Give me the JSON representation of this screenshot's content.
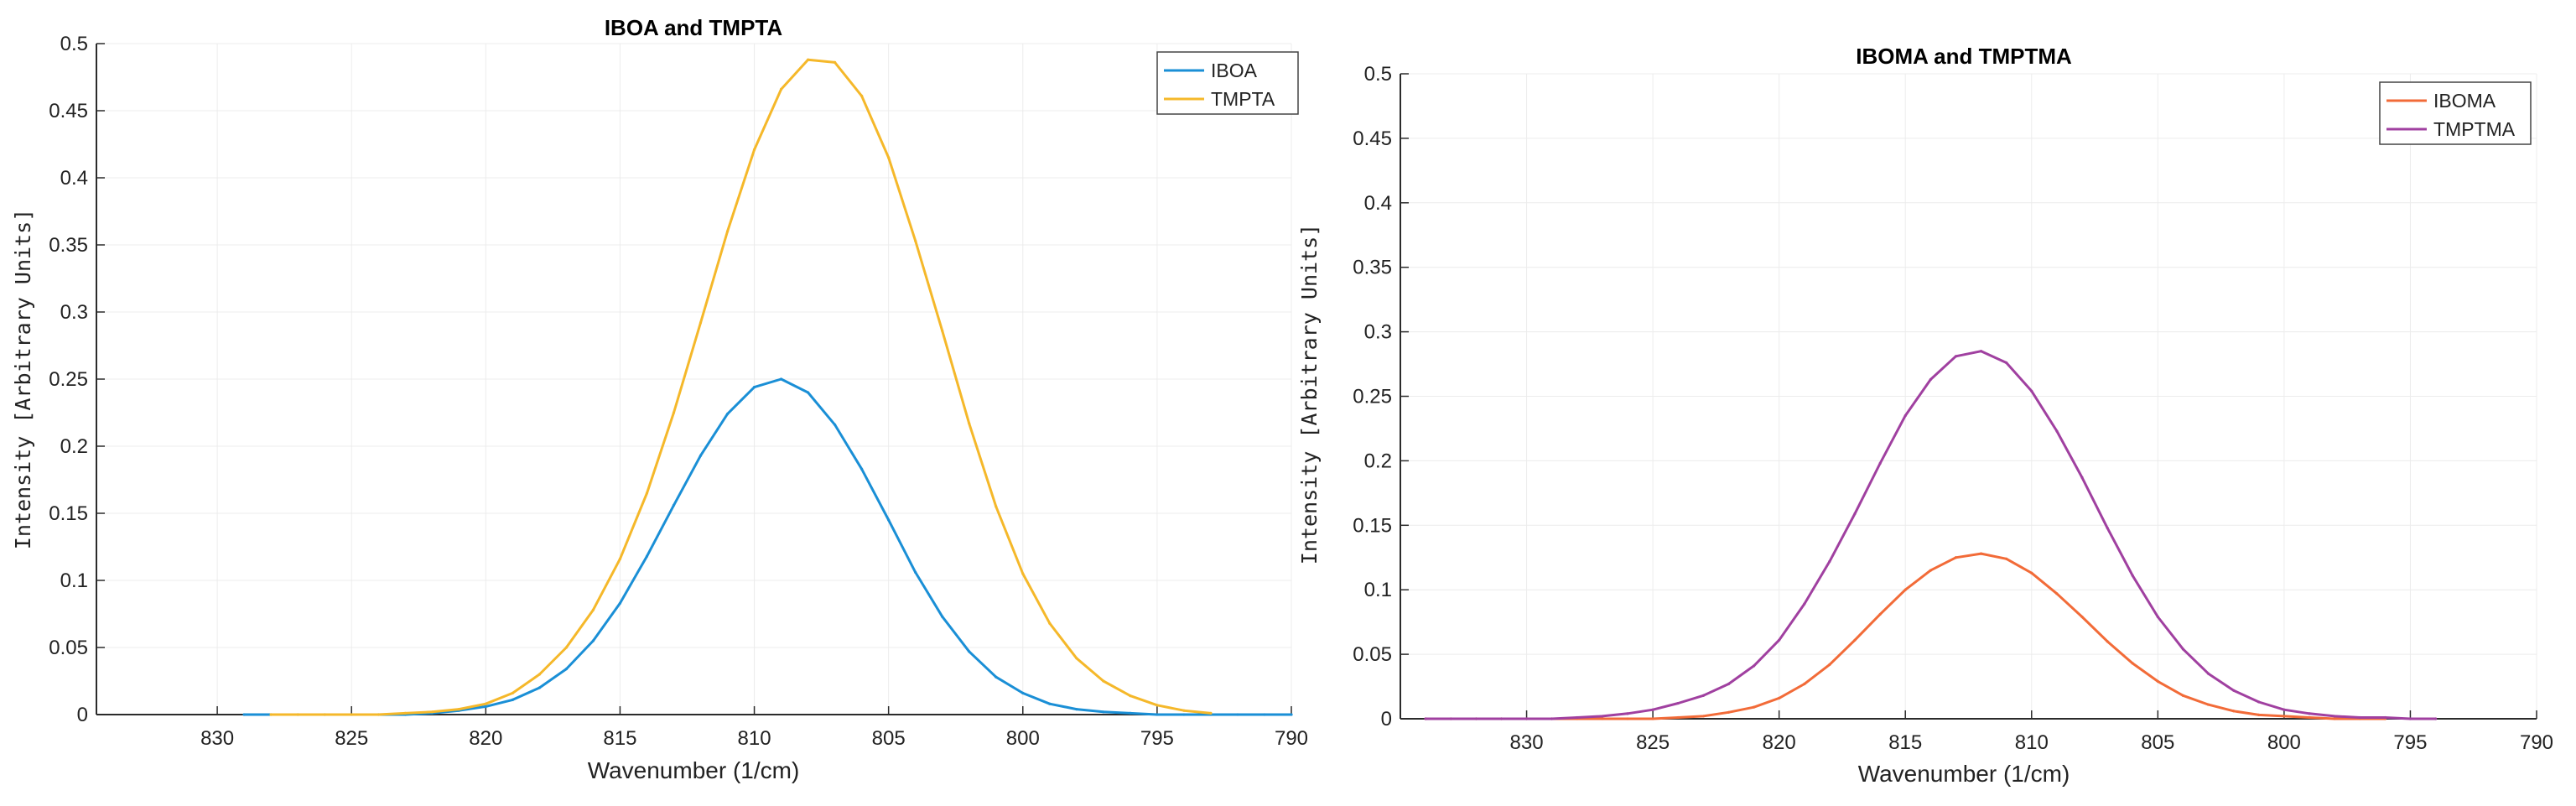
{
  "chart_data": [
    {
      "type": "line",
      "title": "IBOA and TMPTA",
      "xlabel": "Wavenumber (1/cm)",
      "ylabel": "Intensity [Arbitrary Units]",
      "xlim": [
        834.5,
        790
      ],
      "ylim": [
        0,
        0.5
      ],
      "xticks": [
        "830",
        "825",
        "820",
        "815",
        "810",
        "805",
        "800",
        "795",
        "790"
      ],
      "yticks": [
        "0",
        "0.05",
        "0.1",
        "0.15",
        "0.2",
        "0.25",
        "0.3",
        "0.35",
        "0.4",
        "0.45",
        "0.5"
      ],
      "legend": "top-right",
      "series": [
        {
          "name": "IBOA",
          "color": "#1a8fd6",
          "x": [
            829,
            828,
            827,
            826,
            825,
            824,
            823,
            822,
            821,
            820,
            819,
            818,
            817,
            816,
            815,
            814,
            813,
            812,
            811,
            810,
            809,
            808,
            807,
            806,
            805,
            804,
            803,
            802,
            801,
            800,
            799,
            798,
            797,
            796,
            795,
            794,
            793,
            792,
            791,
            790
          ],
          "y": [
            0,
            0,
            0,
            0,
            0,
            0,
            0,
            0.001,
            0.003,
            0.006,
            0.011,
            0.02,
            0.034,
            0.055,
            0.083,
            0.118,
            0.156,
            0.193,
            0.224,
            0.244,
            0.25,
            0.24,
            0.216,
            0.183,
            0.145,
            0.106,
            0.073,
            0.047,
            0.028,
            0.016,
            0.008,
            0.004,
            0.002,
            0.001,
            0,
            0,
            0,
            0,
            0,
            0
          ]
        },
        {
          "name": "TMPTA",
          "color": "#f5b82a",
          "x": [
            828,
            827,
            826,
            825,
            824,
            823,
            822,
            821,
            820,
            819,
            818,
            817,
            816,
            815,
            814,
            813,
            812,
            811,
            810,
            809,
            808,
            807,
            806,
            805,
            804,
            803,
            802,
            801,
            800,
            799,
            798,
            797,
            796,
            795,
            794,
            793
          ],
          "y": [
            0,
            0,
            0,
            0,
            0,
            0.001,
            0.002,
            0.004,
            0.008,
            0.016,
            0.03,
            0.05,
            0.078,
            0.116,
            0.165,
            0.225,
            0.292,
            0.36,
            0.421,
            0.466,
            0.488,
            0.486,
            0.461,
            0.415,
            0.353,
            0.286,
            0.217,
            0.155,
            0.105,
            0.068,
            0.042,
            0.025,
            0.014,
            0.007,
            0.003,
            0.001
          ]
        }
      ]
    },
    {
      "type": "line",
      "title": "IBOMA and TMPTMA",
      "xlabel": "Wavenumber (1/cm)",
      "ylabel": "Intensity [Arbitrary Units]",
      "xlim": [
        835,
        790
      ],
      "ylim": [
        0,
        0.5
      ],
      "xticks": [
        "830",
        "825",
        "820",
        "815",
        "810",
        "805",
        "800",
        "795",
        "790"
      ],
      "yticks": [
        "0",
        "0.05",
        "0.1",
        "0.15",
        "0.2",
        "0.25",
        "0.3",
        "0.35",
        "0.4",
        "0.45",
        "0.5"
      ],
      "legend": "top-right",
      "series": [
        {
          "name": "IBOMA",
          "color": "#f26b38",
          "x": [
            834,
            833,
            832,
            831,
            830,
            829,
            828,
            827,
            826,
            825,
            824,
            823,
            822,
            821,
            820,
            819,
            818,
            817,
            816,
            815,
            814,
            813,
            812,
            811,
            810,
            809,
            808,
            807,
            806,
            805,
            804,
            803,
            802,
            801,
            800,
            799,
            798,
            797,
            796
          ],
          "y": [
            0,
            0,
            0,
            0,
            0,
            0,
            0,
            0,
            0,
            0,
            0.001,
            0.002,
            0.005,
            0.009,
            0.016,
            0.027,
            0.042,
            0.061,
            0.081,
            0.1,
            0.115,
            0.125,
            0.128,
            0.124,
            0.113,
            0.097,
            0.079,
            0.06,
            0.043,
            0.029,
            0.018,
            0.011,
            0.006,
            0.003,
            0.002,
            0.001,
            0,
            0,
            0
          ]
        },
        {
          "name": "TMPTMA",
          "color": "#a040a0",
          "x": [
            834,
            833,
            832,
            831,
            830,
            829,
            828,
            827,
            826,
            825,
            824,
            823,
            822,
            821,
            820,
            819,
            818,
            817,
            816,
            815,
            814,
            813,
            812,
            811,
            810,
            809,
            808,
            807,
            806,
            805,
            804,
            803,
            802,
            801,
            800,
            799,
            798,
            797,
            796,
            795,
            794
          ],
          "y": [
            0,
            0,
            0,
            0,
            0,
            0,
            0.001,
            0.002,
            0.004,
            0.007,
            0.012,
            0.018,
            0.027,
            0.041,
            0.061,
            0.089,
            0.122,
            0.159,
            0.198,
            0.235,
            0.263,
            0.281,
            0.285,
            0.276,
            0.254,
            0.223,
            0.187,
            0.148,
            0.111,
            0.079,
            0.054,
            0.035,
            0.022,
            0.013,
            0.007,
            0.004,
            0.002,
            0.001,
            0.001,
            0,
            0
          ]
        }
      ]
    }
  ]
}
